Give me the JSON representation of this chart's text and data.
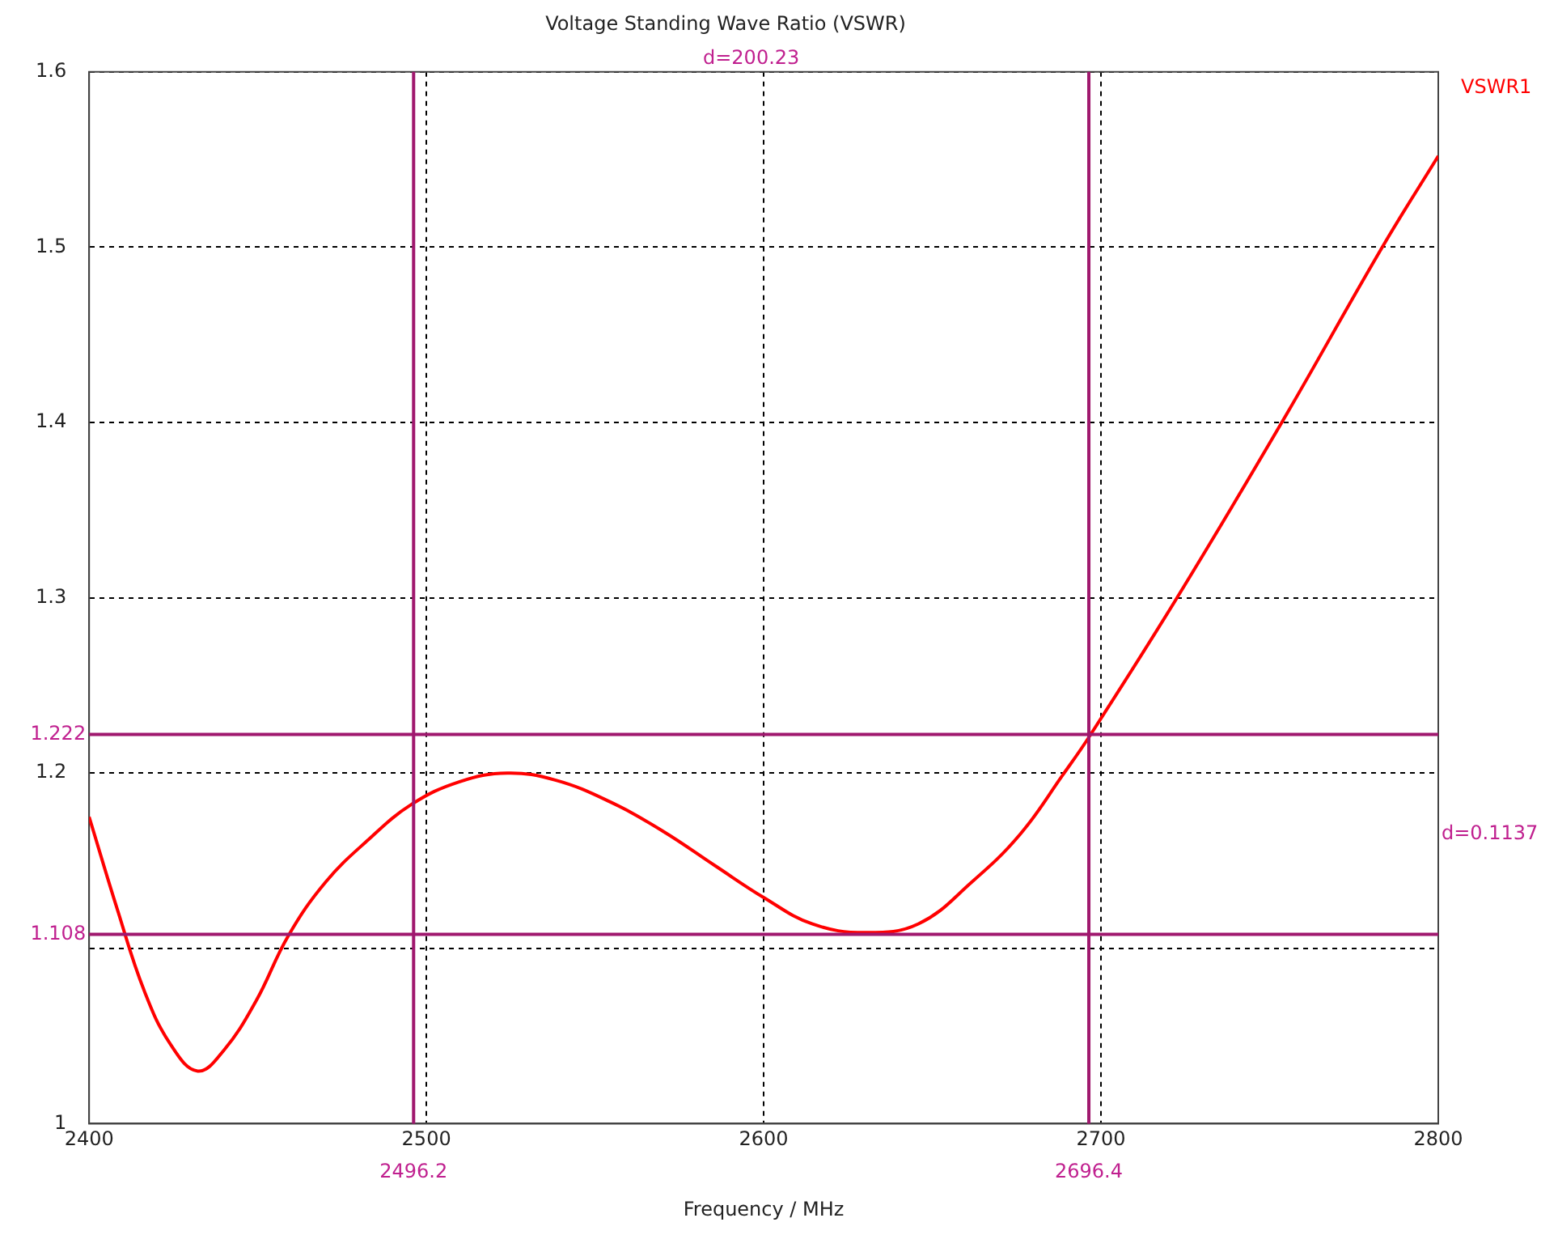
{
  "chart_data": {
    "type": "line",
    "title": "Voltage Standing Wave Ratio (VSWR)",
    "xlabel": "Frequency / MHz",
    "x": [
      2400,
      2408.4,
      2416.3,
      2424.2,
      2432.2,
      2440,
      2449.5,
      2459,
      2470.2,
      2482.8,
      2495.5,
      2509.7,
      2524,
      2538.2,
      2554,
      2570,
      2585.7,
      2600,
      2614.3,
      2630.1,
      2645.9,
      2661.8,
      2676,
      2688.7,
      2696.6,
      2721.9,
      2753.6,
      2783.7,
      2800
    ],
    "series": [
      {
        "name": "VSWR1",
        "color": "#ff0000",
        "values": [
          1.175,
          1.122,
          1.076,
          1.045,
          1.03,
          1.042,
          1.07,
          1.107,
          1.138,
          1.162,
          1.182,
          1.195,
          1.2,
          1.196,
          1.184,
          1.167,
          1.147,
          1.129,
          1.114,
          1.109,
          1.114,
          1.138,
          1.165,
          1.199,
          1.221,
          1.298,
          1.4,
          1.501,
          1.552
        ]
      }
    ],
    "xlim": [
      2400,
      2800
    ],
    "xticks": [
      2400,
      2500,
      2600,
      2700,
      2800
    ],
    "ylim": [
      1,
      1.6
    ],
    "yticks": [
      1,
      {
        "value": 1.1,
        "label": null
      },
      1.2,
      1.3,
      1.4,
      1.5,
      1.6
    ],
    "grid": true,
    "legend": "right",
    "marker": "none",
    "line_style": "solid",
    "ref_lines": [
      {
        "axis": "x",
        "value": 2496.2,
        "label": "2496.2",
        "color": "#a0186e"
      },
      {
        "axis": "x",
        "value": 2696.4,
        "label": "2696.4",
        "color": "#a0186e"
      },
      {
        "axis": "y",
        "value": 1.222,
        "label": "1.222",
        "color": "#a0186e"
      },
      {
        "axis": "y",
        "value": 1.108,
        "label": "1.108",
        "color": "#a0186e"
      }
    ],
    "annotations": [
      "d=200.23",
      "d=0.1137"
    ]
  }
}
